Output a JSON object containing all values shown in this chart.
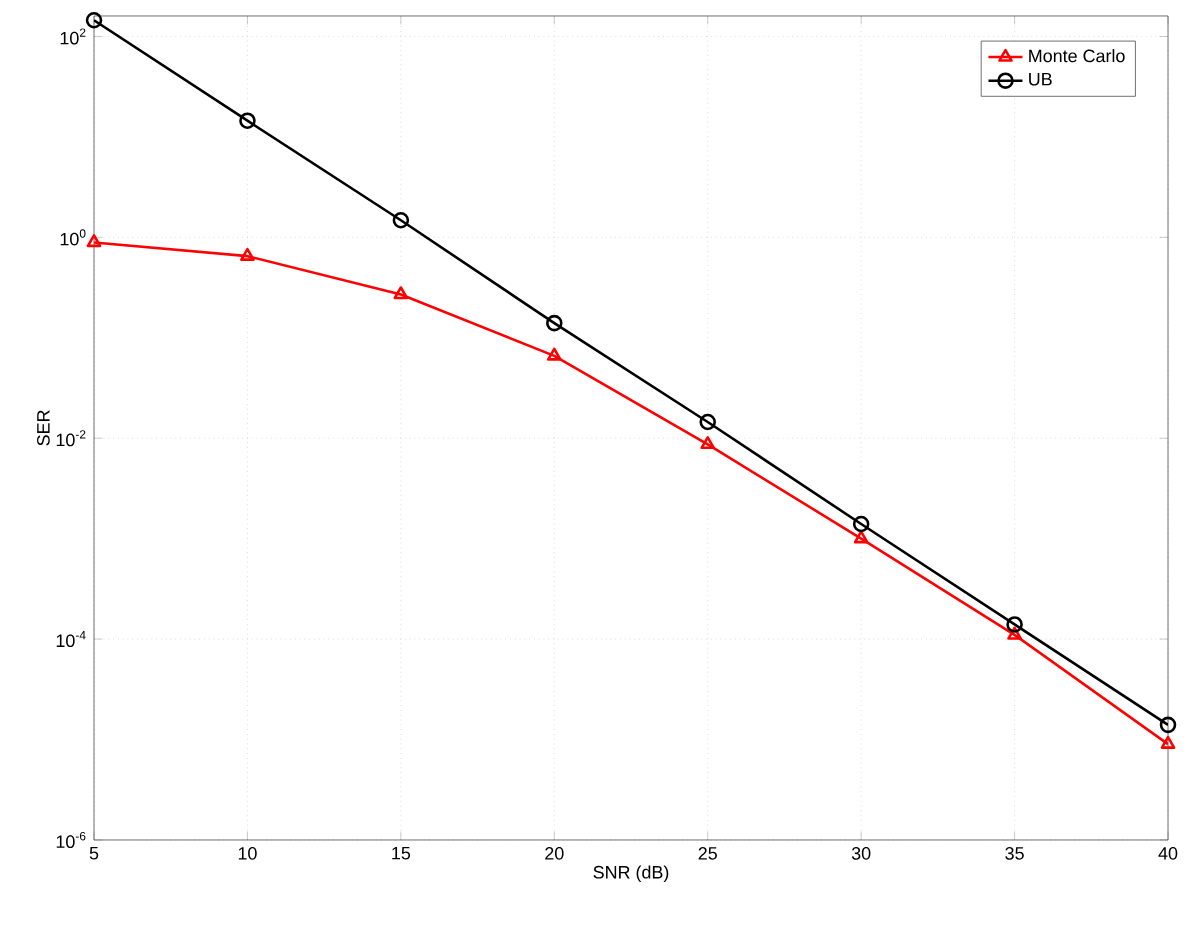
{
  "chart_data": {
    "type": "line",
    "xlabel": "SNR (dB)",
    "ylabel": "SER",
    "log": "y",
    "grid": true,
    "legend": "top right",
    "x": [
      5,
      10,
      15,
      20,
      25,
      30,
      35,
      40
    ],
    "xlim": [
      5,
      40
    ],
    "xticks": [
      5,
      10,
      15,
      20,
      25,
      30,
      35,
      40
    ],
    "ylim": [
      1e-06,
      160
    ],
    "yticks": [
      {
        "value": 1e-06,
        "label": "10$^{-6}$"
      },
      {
        "value": 0.0001,
        "label": "10$^{-4}$"
      },
      {
        "value": 0.01,
        "label": "10$^{-2}$"
      },
      {
        "value": 1,
        "label": "10$^{0}$"
      },
      {
        "value": 100,
        "label": "10$^{2}$"
      }
    ],
    "series": [
      {
        "name": "Monte Carlo",
        "color": "#ff0000",
        "marker": "triangle",
        "values": [
          0.89,
          0.65,
          0.27,
          0.066,
          0.0087,
          0.001,
          0.00011,
          9e-06
        ]
      },
      {
        "name": "UB",
        "color": "#000000",
        "marker": "circle",
        "values": [
          145,
          14.5,
          1.48,
          0.14,
          0.0145,
          0.0014,
          0.00014,
          1.4e-05
        ]
      }
    ]
  }
}
